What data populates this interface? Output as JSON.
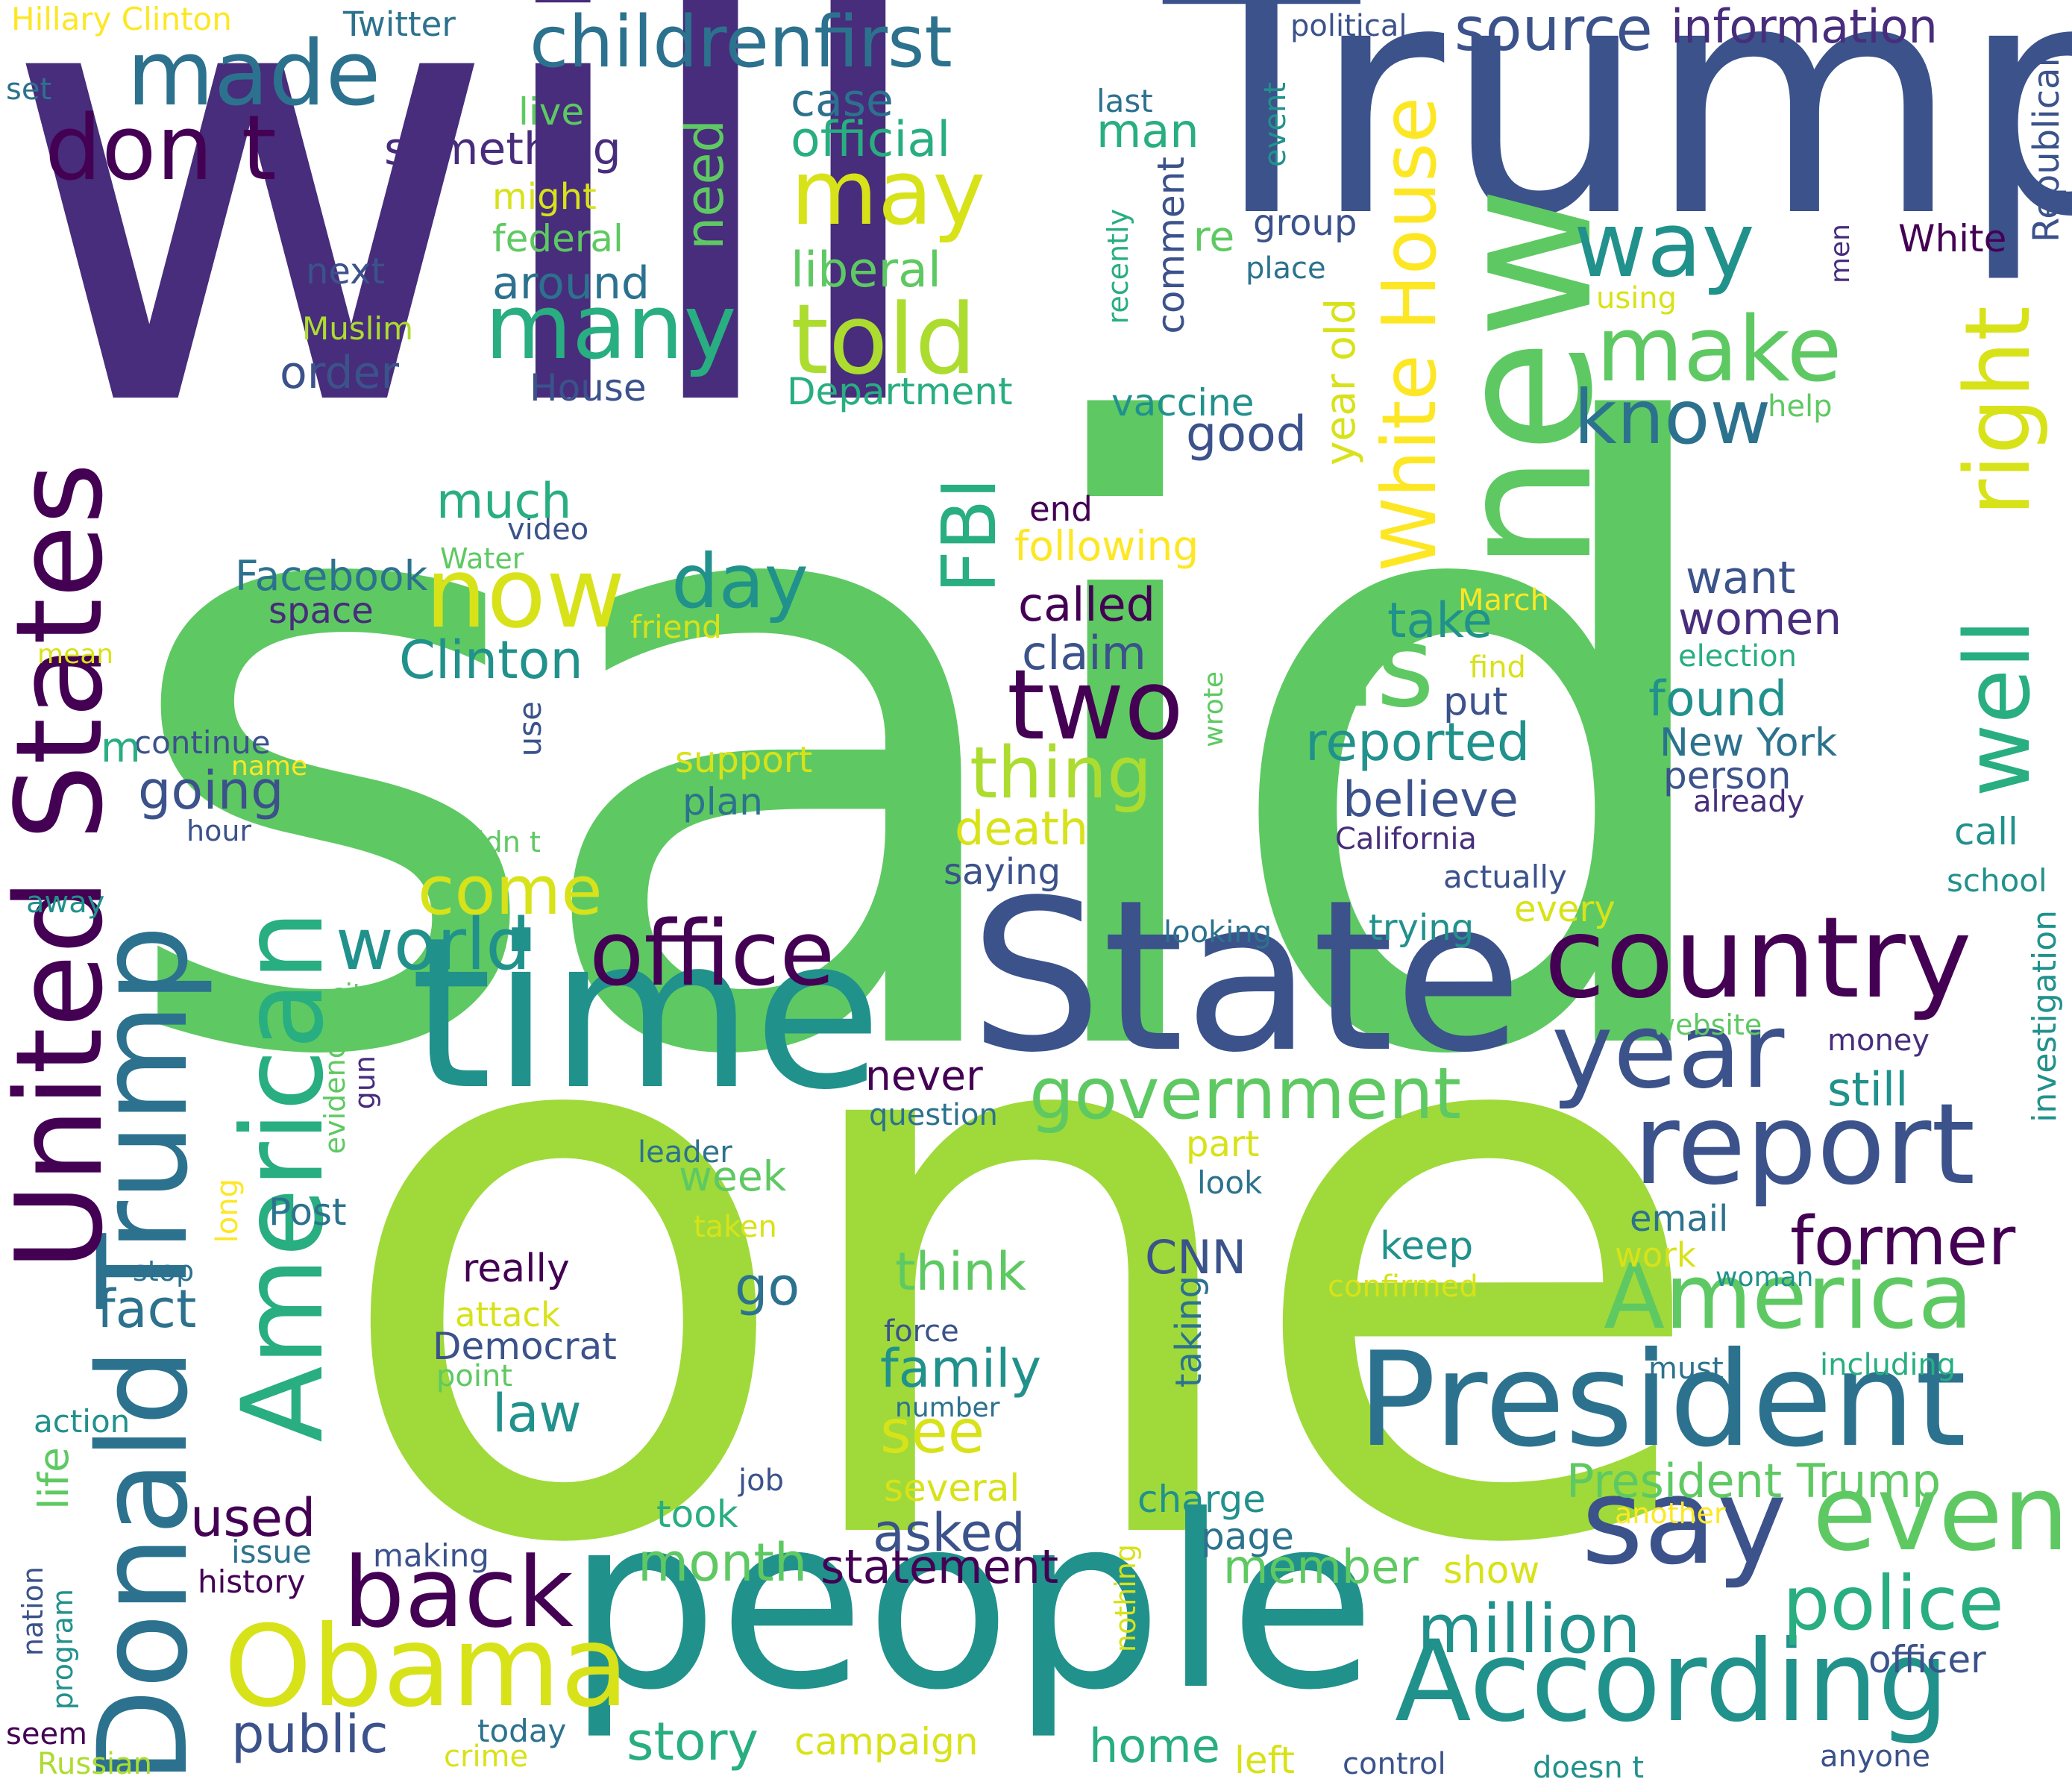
{
  "palette": {
    "deep_purple": "#472d7b",
    "indigo": "#3b528b",
    "blue": "#2c728e",
    "teal": "#21918c",
    "green_teal": "#28ae80",
    "green": "#5ec962",
    "lime": "#addc30",
    "yellow": "#fde725",
    "dark": "#440154",
    "background": "#ffffff"
  },
  "words": [
    "said",
    "will",
    "one",
    "Trump",
    "people",
    "new",
    "time",
    "State",
    "President",
    "Donald Trump",
    "United States",
    "American",
    "According",
    "country",
    "year",
    "report",
    "say",
    "even",
    "Obama",
    "office",
    "now",
    "told",
    "many",
    "made",
    "don t",
    "may",
    "childrenfirst",
    "source",
    "information",
    "way",
    "make",
    "know",
    "right",
    "well",
    "us",
    "two",
    "day",
    "FBI",
    "White House",
    "America",
    "government",
    "former",
    "police",
    "million",
    "back",
    "world",
    "come",
    "thing",
    "people",
    "public",
    "story",
    "home",
    "member",
    "statement",
    "month",
    "asked",
    "see",
    "family",
    "think",
    "law",
    "go",
    "fact",
    "used",
    "Clinton",
    "Facebook",
    "going",
    "reported",
    "believe",
    "found",
    "take",
    "want",
    "women",
    "year old",
    "good",
    "official",
    "liberal",
    "case",
    "something",
    "around",
    "federal",
    "need",
    "Twitter",
    "Hillary Clinton",
    "political",
    "Republican",
    "White",
    "last",
    "man",
    "live",
    "might",
    "next",
    "order",
    "House",
    "Department",
    "vaccine",
    "comment",
    "group",
    "place",
    "event",
    "using",
    "help",
    "re",
    "recently",
    "men",
    "Muslim",
    "set",
    "space",
    "Water",
    "video",
    "friend",
    "mean",
    "much",
    "end",
    "following",
    "March",
    "find",
    "put",
    "election",
    "New York",
    "person",
    "already",
    "called",
    "claim",
    "support",
    "plan",
    "death",
    "saying",
    "California",
    "actually",
    "call",
    "school",
    "every",
    "trying",
    "looking",
    "website",
    "money",
    "investigation",
    "still",
    "never",
    "question",
    "part",
    "look",
    "week",
    "CNN",
    "keep",
    "confirmed",
    "work",
    "email",
    "woman",
    "including",
    "must",
    "force",
    "number",
    "taking",
    "several",
    "charge",
    "page",
    "took",
    "job",
    "show",
    "another",
    "President Trump",
    "officer",
    "really",
    "attack",
    "Democrat",
    "point",
    "Post",
    "long",
    "taken",
    "stop",
    "evidence",
    "gun",
    "city",
    "away",
    "continue",
    "name",
    "hour",
    "didn t",
    "use",
    "wrote",
    "life",
    "action",
    "nation",
    "program",
    "history",
    "issue",
    "making",
    "today",
    "crime",
    "Russian",
    "seem",
    "campaign",
    "left",
    "control",
    "doesn t",
    "anyone",
    "nothing",
    "leader",
    "m"
  ]
}
